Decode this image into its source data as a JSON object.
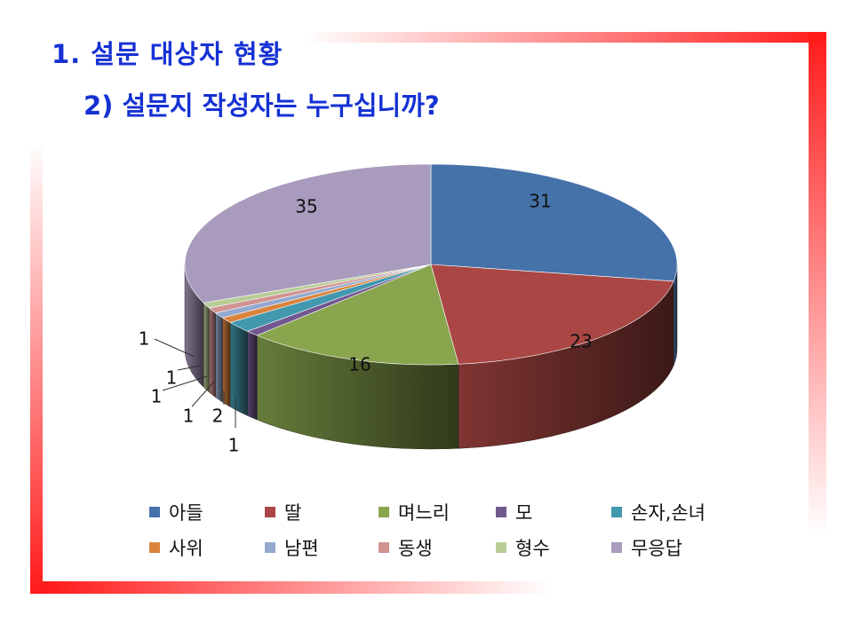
{
  "title": "1.   설문 대상자 현황",
  "subtitle": "2) 설문지 작성자는 누구십니까?",
  "chart_data": {
    "type": "pie",
    "categories": [
      "아들",
      "딸",
      "며느리",
      "모",
      "손자,손녀",
      "사위",
      "남편",
      "동생",
      "형수",
      "무응답"
    ],
    "values": [
      31,
      23,
      16,
      1,
      2,
      1,
      1,
      1,
      1,
      35
    ],
    "colors": [
      "#4672aa",
      "#aa4643",
      "#89a54e",
      "#71588f",
      "#4198af",
      "#db843d",
      "#93a9cf",
      "#d19392",
      "#b9cd96",
      "#a99bbd"
    ],
    "data_labels": [
      "31",
      "23",
      "16",
      "1",
      "2",
      "1",
      "1",
      "1",
      "1",
      "35"
    ],
    "legend_position": "bottom"
  }
}
